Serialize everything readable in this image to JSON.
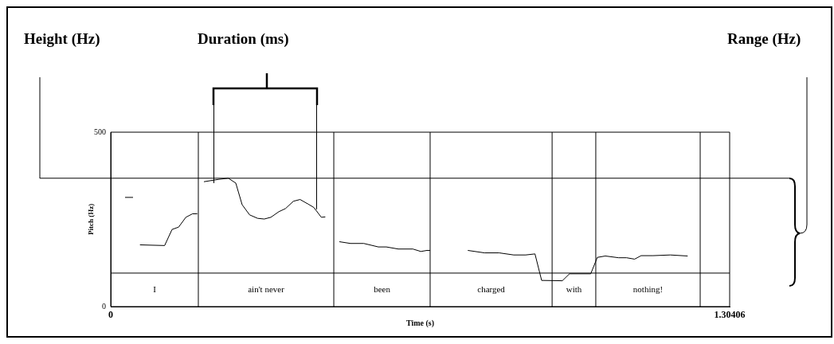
{
  "chart_data": {
    "type": "line",
    "xlabel": "Time (s)",
    "ylabel": "Pitch (Hz)",
    "xlim": [
      0,
      1.30406
    ],
    "xticks": [
      0,
      1.30406
    ],
    "ylim": [
      0,
      500
    ],
    "yticks": [
      0,
      500
    ],
    "grid": false,
    "legend": false,
    "marker": "none",
    "line_style": "solid",
    "series": [
      {
        "color": "#000000",
        "x": [
          0.0302,
          0.047,
          0.054,
          0.0616,
          0.0856,
          0.1136,
          0.1292,
          0.1432,
          0.1583,
          0.1724,
          0.1824,
          0.19,
          0.1964,
          0.2282,
          0.2479,
          0.2635,
          0.2769,
          0.2926,
          0.3094,
          0.3235,
          0.3374,
          0.3542,
          0.3682,
          0.3849,
          0.399,
          0.4158,
          0.4281,
          0.4437,
          0.4521,
          0.47,
          0.4817,
          0.5052,
          0.5332,
          0.5639,
          0.5807,
          0.6059,
          0.6366,
          0.6534,
          0.6663,
          0.673,
          0.71,
          0.7524,
          0.7876,
          0.8184,
          0.8491,
          0.8743,
          0.8939,
          0.9079,
          0.9515,
          0.9666,
          1.0114,
          1.0253,
          1.0421,
          1.0701,
          1.0869,
          1.1037,
          1.1176,
          1.1428,
          1.1791,
          1.2156
        ],
        "values": [
          313,
          313,
          null,
          177,
          176,
          175,
          221,
          228,
          256,
          266,
          266,
          null,
          358,
          365,
          368,
          354,
          292,
          263,
          253,
          251,
          256,
          272,
          281,
          302,
          307,
          294,
          284,
          256,
          257,
          null,
          186,
          181,
          181,
          171,
          171,
          165,
          165,
          158,
          161,
          161,
          null,
          161,
          154,
          154,
          148,
          148,
          151,
          75,
          74,
          94,
          94,
          141,
          145,
          140,
          140,
          136,
          146,
          146,
          148,
          145
        ]
      }
    ],
    "ref_lines": [
      {
        "axis": "y",
        "value": 368,
        "color": "#000000"
      },
      {
        "axis": "y",
        "value": 96,
        "color": "#000000"
      },
      {
        "axis": "x",
        "value": 0.1846,
        "color": "#000000"
      },
      {
        "axis": "x",
        "value": 0.47,
        "color": "#000000"
      },
      {
        "axis": "x",
        "value": 0.673,
        "color": "#000000"
      },
      {
        "axis": "x",
        "value": 0.93,
        "color": "#000000"
      },
      {
        "axis": "x",
        "value": 1.022,
        "color": "#000000"
      },
      {
        "axis": "x",
        "value": 1.242,
        "color": "#000000"
      }
    ],
    "annotations": [
      "Height (Hz)",
      "Duration (ms)",
      "Range (Hz)",
      "I",
      "ain't never",
      "been",
      "charged",
      "with",
      "nothing!"
    ]
  }
}
